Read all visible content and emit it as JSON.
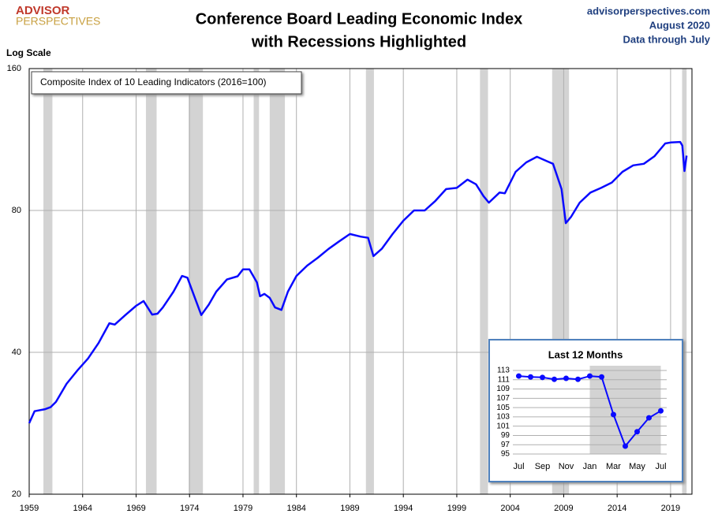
{
  "header": {
    "logo_top": "ADVISOR",
    "logo_bottom": "PERSPECTIVES",
    "site": "advisorperspectives.com",
    "date": "August 2020",
    "note": "Data through July"
  },
  "chart_data": [
    {
      "type": "line",
      "title": [
        "Conference Board Leading Economic Index",
        "with Recessions Highlighted"
      ],
      "y_label": "Log Scale",
      "log_scale": true,
      "grid": true,
      "xlim": [
        1959,
        2021
      ],
      "xticks": [
        1959,
        1964,
        1969,
        1974,
        1979,
        1984,
        1989,
        1994,
        1999,
        2004,
        2009,
        2014,
        2019
      ],
      "ylim": [
        20,
        160
      ],
      "yticks": [
        20,
        40,
        80,
        160
      ],
      "recession_color": "#d3d3d3",
      "recessions": [
        [
          1960.33,
          1961.17
        ],
        [
          1969.92,
          1970.92
        ],
        [
          1973.92,
          1975.25
        ],
        [
          1980.0,
          1980.5
        ],
        [
          1981.5,
          1982.92
        ],
        [
          1990.5,
          1991.25
        ],
        [
          2001.17,
          2001.92
        ],
        [
          2007.92,
          2009.5
        ],
        [
          2020.08,
          2020.5
        ]
      ],
      "x": [
        1959.0,
        1959.5,
        1960.5,
        1961.0,
        1961.5,
        1962.5,
        1963.5,
        1964.5,
        1965.5,
        1966.5,
        1967.0,
        1968.0,
        1969.0,
        1969.7,
        1970.5,
        1971.0,
        1971.5,
        1972.5,
        1973.3,
        1973.8,
        1974.5,
        1975.1,
        1975.8,
        1976.5,
        1977.5,
        1978.5,
        1979.0,
        1979.6,
        1980.3,
        1980.6,
        1981.0,
        1981.5,
        1982.0,
        1982.6,
        1983.2,
        1984.0,
        1985.0,
        1986.0,
        1987.0,
        1988.0,
        1989.0,
        1990.0,
        1990.7,
        1991.2,
        1992.0,
        1993.0,
        1994.0,
        1995.0,
        1996.0,
        1997.0,
        1998.0,
        1999.0,
        2000.0,
        2000.8,
        2001.5,
        2002.0,
        2003.0,
        2003.5,
        2004.5,
        2005.5,
        2006.5,
        2007.5,
        2008.0,
        2008.8,
        2009.2,
        2009.7,
        2010.5,
        2011.5,
        2012.5,
        2013.5,
        2014.5,
        2015.5,
        2016.5,
        2017.5,
        2018.5,
        2019.0,
        2019.9,
        2020.1,
        2020.3,
        2020.5
      ],
      "series": [
        {
          "name": "Composite Index of 10 Leading Indicators (2016=100)",
          "color": "#0a0aff",
          "values": [
            28.3,
            30,
            30.3,
            30.6,
            31.4,
            34.3,
            36.6,
            38.8,
            41.9,
            46.1,
            45.8,
            48,
            50.2,
            51.4,
            48.1,
            48.3,
            49.8,
            53.8,
            58.1,
            57.6,
            52.2,
            48.0,
            50.5,
            53.8,
            57.1,
            58,
            60,
            60,
            56.3,
            52.6,
            53.2,
            52.2,
            49.8,
            49.2,
            53.8,
            58.1,
            61.1,
            63.5,
            66.3,
            68.8,
            71.3,
            70.4,
            70,
            64.0,
            66.4,
            71.3,
            76.1,
            80,
            80,
            83.8,
            88.8,
            89.3,
            93,
            90.9,
            85.8,
            83.1,
            87.3,
            87,
            96.6,
            101.2,
            104,
            101.6,
            100.5,
            88.8,
            75.2,
            77.6,
            83.1,
            87.3,
            89.3,
            91.7,
            96.6,
            99.7,
            100.5,
            104.3,
            111,
            111.5,
            111.8,
            109.8,
            97,
            104.6
          ]
        }
      ]
    },
    {
      "type": "line",
      "title": "Last 12 Months",
      "categories": [
        "Jul",
        null,
        "Sep",
        null,
        "Nov",
        null,
        "Jan",
        null,
        "Mar",
        null,
        "May",
        null,
        "Jul"
      ],
      "ylim": [
        95,
        113
      ],
      "yticks": [
        95,
        97,
        99,
        101,
        103,
        105,
        107,
        109,
        111,
        113
      ],
      "grid": true,
      "recession": {
        "from": 6,
        "to": 12
      },
      "series": [
        {
          "color": "#0a0aff",
          "values": [
            111.8,
            111.6,
            111.5,
            111.1,
            111.3,
            111.1,
            111.8,
            111.6,
            103.5,
            96.7,
            99.8,
            102.8,
            104.3
          ]
        }
      ]
    }
  ]
}
